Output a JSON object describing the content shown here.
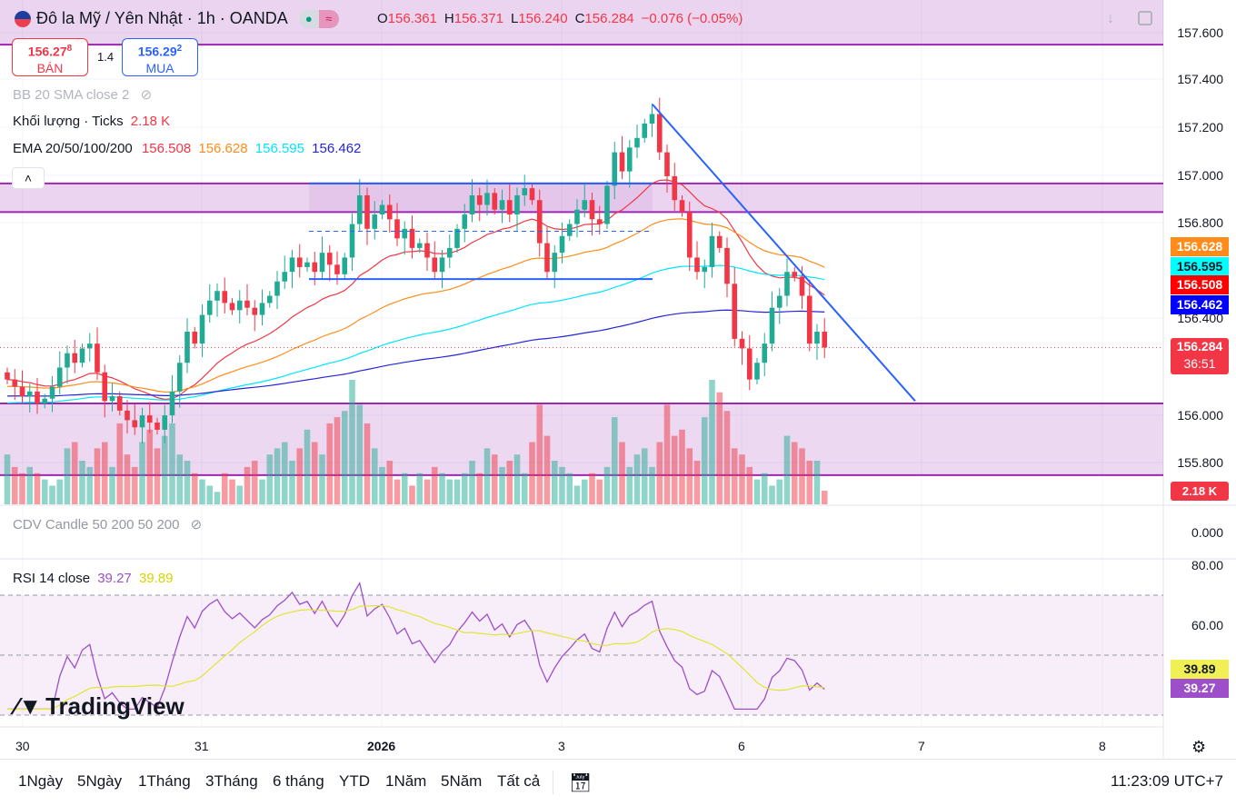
{
  "header": {
    "symbol": "Đô la Mỹ / Yên Nhật · 1h · OANDA",
    "o_label": "O",
    "o": "156.361",
    "h_label": "H",
    "h": "156.371",
    "l_label": "L",
    "l": "156.240",
    "c_label": "C",
    "c": "156.284",
    "change": "−0.076 (−0.05%)"
  },
  "trade": {
    "sell_price": "156.27",
    "sell_sup": "8",
    "sell_label": "BÁN",
    "spread": "1.4",
    "buy_price": "156.29",
    "buy_sup": "2",
    "buy_label": "MUA"
  },
  "legends": {
    "bb": "BB 20 SMA close 2",
    "volume": "Khối lượng · Ticks",
    "volume_value": "2.18 K",
    "ema": "EMA 20/50/100/200",
    "ema20": "156.508",
    "ema50": "156.628",
    "ema100": "156.595",
    "ema200": "156.462",
    "cdv": "CDV Candle 50 200 50 200",
    "rsi": "RSI 14 close",
    "rsi_value": "39.27",
    "rsi_ma": "39.89"
  },
  "price_axis": [
    "157.600",
    "157.400",
    "157.200",
    "157.000",
    "156.800",
    "156.400",
    "156.000",
    "155.800"
  ],
  "price_tags": {
    "ema50": "156.628",
    "ema100": "156.595",
    "ema20": "156.508",
    "ema200": "156.462",
    "last": "156.284",
    "countdown": "36:51",
    "volume": "2.18 K",
    "cdv_axis": "0.000",
    "rsi_80": "80.00",
    "rsi_60": "60.00",
    "rsi_ma": "39.89",
    "rsi": "39.27"
  },
  "time_axis": [
    "30",
    "31",
    "2026",
    "3",
    "6",
    "7",
    "8"
  ],
  "toolbar": {
    "ranges": [
      "1Ngày",
      "5Ngày",
      "1Tháng",
      "3Tháng",
      "6 tháng",
      "YTD",
      "1Năm",
      "5Năm",
      "Tất cả"
    ],
    "clock": "11:23:09 UTC+7"
  },
  "watermark": "TradingView",
  "colors": {
    "up": "#22ab94",
    "down": "#f23645",
    "ema20": "#f23645",
    "ema50": "#ff8c1a",
    "ema100": "#00e5ff",
    "ema200": "#2424d8",
    "rsi": "#9c4fc8",
    "rsi_ma": "#e0e632",
    "zone": "#9c27b0",
    "trend": "#2962ff"
  },
  "chart_data": {
    "type": "candlestick",
    "title": "USD/JPY 1h OANDA",
    "ylim": [
      155.7,
      157.65
    ],
    "close": [
      156.15,
      156.12,
      156.08,
      156.1,
      156.05,
      156.07,
      156.12,
      156.2,
      156.26,
      156.22,
      156.28,
      156.3,
      156.18,
      156.06,
      156.08,
      156.02,
      155.98,
      155.95,
      156.0,
      155.97,
      155.94,
      156.0,
      156.1,
      156.22,
      156.35,
      156.3,
      156.42,
      156.48,
      156.52,
      156.47,
      156.44,
      156.48,
      156.45,
      156.42,
      156.47,
      156.5,
      156.56,
      156.6,
      156.66,
      156.62,
      156.64,
      156.6,
      156.68,
      156.63,
      156.59,
      156.66,
      156.8,
      156.92,
      156.78,
      156.84,
      156.88,
      156.82,
      156.74,
      156.78,
      156.7,
      156.72,
      156.66,
      156.6,
      156.66,
      156.7,
      156.78,
      156.84,
      156.92,
      156.88,
      156.93,
      156.86,
      156.9,
      156.84,
      156.92,
      156.95,
      156.9,
      156.72,
      156.6,
      156.68,
      156.75,
      156.8,
      156.86,
      156.9,
      156.82,
      156.8,
      156.96,
      157.1,
      157.02,
      157.12,
      157.16,
      157.22,
      157.26,
      157.1,
      157.0,
      156.9,
      156.85,
      156.66,
      156.6,
      156.62,
      156.75,
      156.7,
      156.55,
      156.32,
      156.28,
      156.15,
      156.22,
      156.3,
      156.45,
      156.5,
      156.6,
      156.58,
      156.5,
      156.3,
      156.35,
      156.284
    ],
    "volume_k": [
      8,
      6,
      5,
      6,
      5,
      4,
      3,
      4,
      9,
      10,
      7,
      6,
      9,
      10,
      6,
      13,
      8,
      6,
      10,
      12,
      9,
      11,
      13,
      8,
      7,
      5,
      4,
      3,
      2,
      5,
      4,
      3,
      6,
      7,
      4,
      8,
      9,
      10,
      7,
      9,
      12,
      10,
      8,
      13,
      14,
      15,
      20,
      16,
      13,
      9,
      6,
      7,
      4,
      5,
      3,
      5,
      4,
      6,
      5,
      4,
      4,
      5,
      7,
      5,
      9,
      8,
      6,
      7,
      8,
      5,
      10,
      16,
      11,
      7,
      6,
      5,
      3,
      4,
      5,
      4,
      6,
      14,
      10,
      6,
      8,
      9,
      6,
      10,
      16,
      11,
      12,
      9,
      7,
      14,
      20,
      18,
      15,
      9,
      8,
      6,
      4,
      5,
      3,
      4,
      11,
      10,
      9,
      7,
      7,
      2.18
    ],
    "horizontal_levels": [
      157.55,
      156.97,
      156.85,
      156.05,
      155.75
    ],
    "channel": {
      "top": 156.97,
      "mid": 156.77,
      "bottom": 156.57
    },
    "trendline": [
      157.3,
      156.06
    ],
    "rsi_levels": [
      70,
      50,
      30
    ],
    "rsi_ylim": [
      20,
      82
    ]
  }
}
